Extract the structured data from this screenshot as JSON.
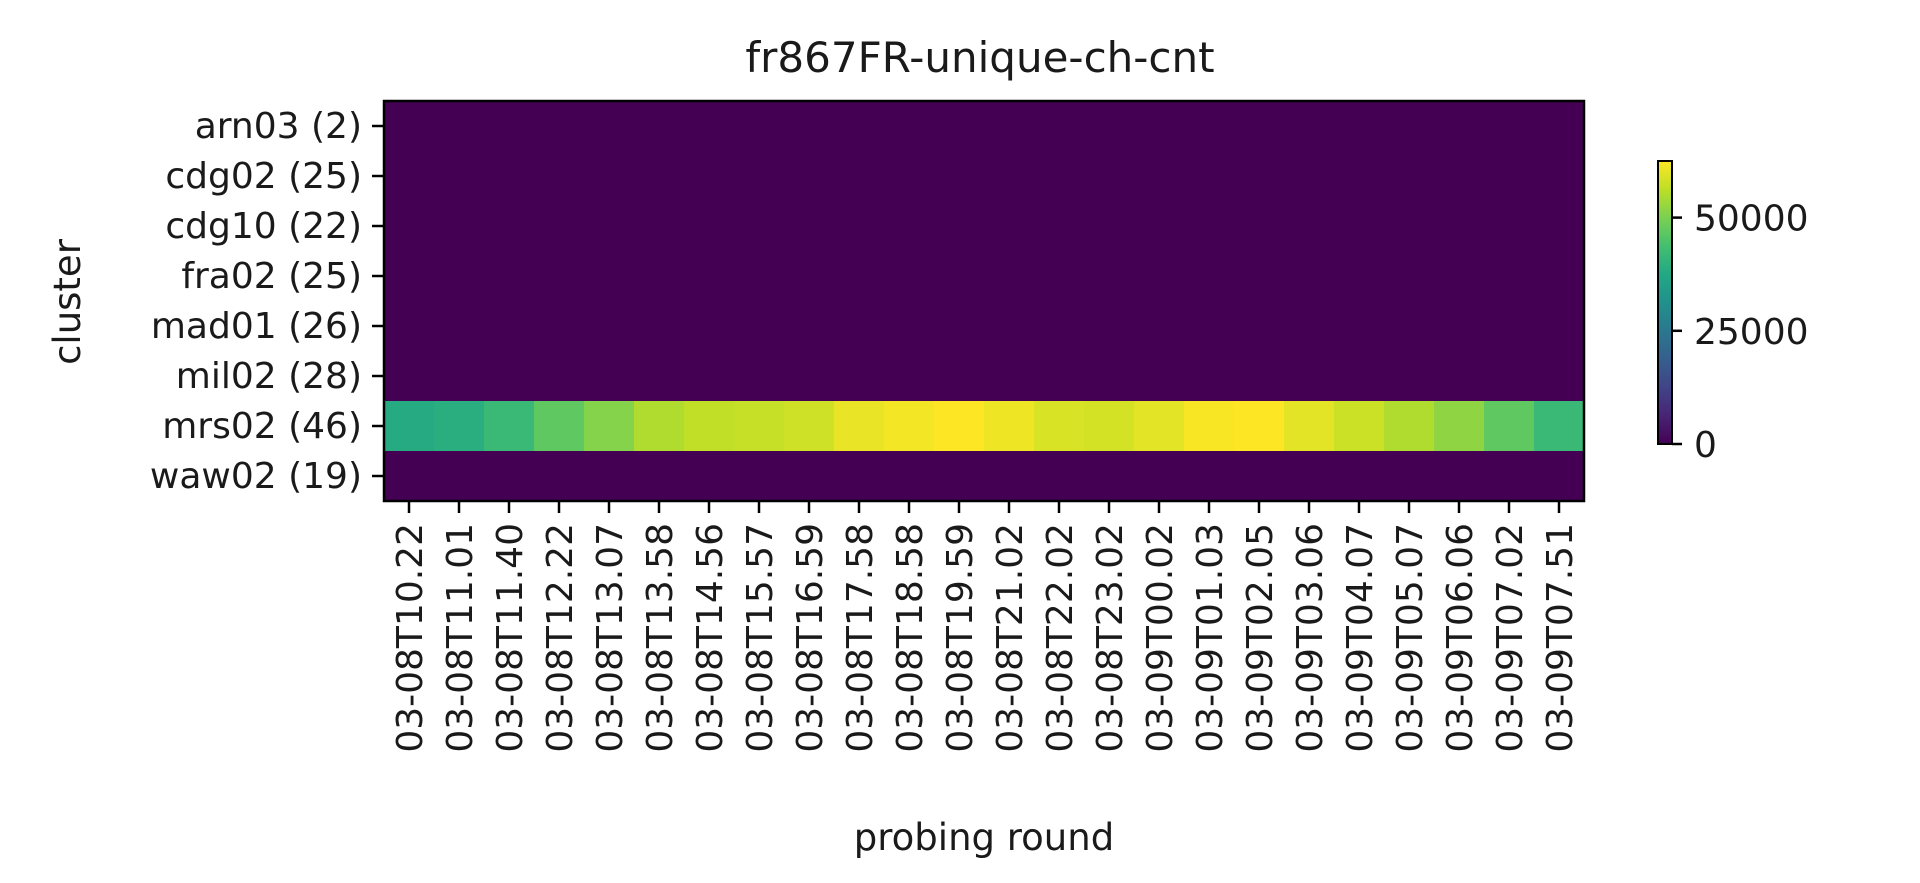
{
  "chart_data": {
    "type": "heatmap",
    "title": "fr867FR-unique-ch-cnt",
    "xlabel": "probing round",
    "ylabel": "cluster",
    "x": [
      "03-08T10.22",
      "03-08T11.01",
      "03-08T11.40",
      "03-08T12.22",
      "03-08T13.07",
      "03-08T13.58",
      "03-08T14.56",
      "03-08T15.57",
      "03-08T16.59",
      "03-08T17.58",
      "03-08T18.58",
      "03-08T19.59",
      "03-08T21.02",
      "03-08T22.02",
      "03-08T23.02",
      "03-09T00.02",
      "03-09T01.03",
      "03-09T02.05",
      "03-09T03.06",
      "03-09T04.07",
      "03-09T05.07",
      "03-09T06.06",
      "03-09T07.02",
      "03-09T07.51"
    ],
    "y": [
      "arn03 (2)",
      "cdg02 (25)",
      "cdg10 (22)",
      "fra02 (25)",
      "mad01 (26)",
      "mil02 (28)",
      "mrs02 (46)",
      "waw02 (19)"
    ],
    "values": [
      [
        0,
        0,
        0,
        0,
        0,
        0,
        0,
        0,
        0,
        0,
        0,
        0,
        0,
        0,
        0,
        0,
        0,
        0,
        0,
        0,
        0,
        0,
        0,
        0
      ],
      [
        0,
        0,
        0,
        0,
        0,
        0,
        0,
        0,
        0,
        0,
        0,
        0,
        0,
        0,
        0,
        0,
        0,
        0,
        0,
        0,
        0,
        0,
        0,
        0
      ],
      [
        0,
        0,
        0,
        0,
        0,
        0,
        0,
        0,
        0,
        0,
        0,
        0,
        0,
        0,
        0,
        0,
        0,
        0,
        0,
        0,
        0,
        0,
        0,
        0
      ],
      [
        0,
        0,
        0,
        0,
        0,
        0,
        0,
        0,
        0,
        0,
        0,
        0,
        0,
        0,
        0,
        0,
        0,
        0,
        0,
        0,
        0,
        0,
        0,
        0
      ],
      [
        0,
        0,
        0,
        0,
        0,
        0,
        0,
        0,
        0,
        0,
        0,
        0,
        0,
        0,
        0,
        0,
        0,
        0,
        0,
        0,
        0,
        0,
        0,
        0
      ],
      [
        0,
        0,
        0,
        0,
        0,
        0,
        0,
        0,
        0,
        0,
        0,
        0,
        0,
        0,
        0,
        0,
        0,
        0,
        0,
        0,
        0,
        0,
        0,
        0
      ],
      [
        38000,
        39000,
        42000,
        47000,
        51000,
        55000,
        56500,
        57000,
        58000,
        60500,
        61500,
        62500,
        61000,
        59000,
        58500,
        60000,
        62000,
        62500,
        60000,
        57500,
        55000,
        52000,
        47000,
        42000
      ],
      [
        0,
        0,
        0,
        0,
        0,
        0,
        0,
        0,
        0,
        0,
        0,
        0,
        0,
        0,
        0,
        0,
        0,
        0,
        0,
        0,
        0,
        0,
        0,
        0
      ]
    ],
    "colorbar": {
      "min": 0,
      "max": 62500,
      "ticks": [
        0,
        25000,
        50000
      ],
      "colormap": "viridis"
    },
    "grid": false
  }
}
